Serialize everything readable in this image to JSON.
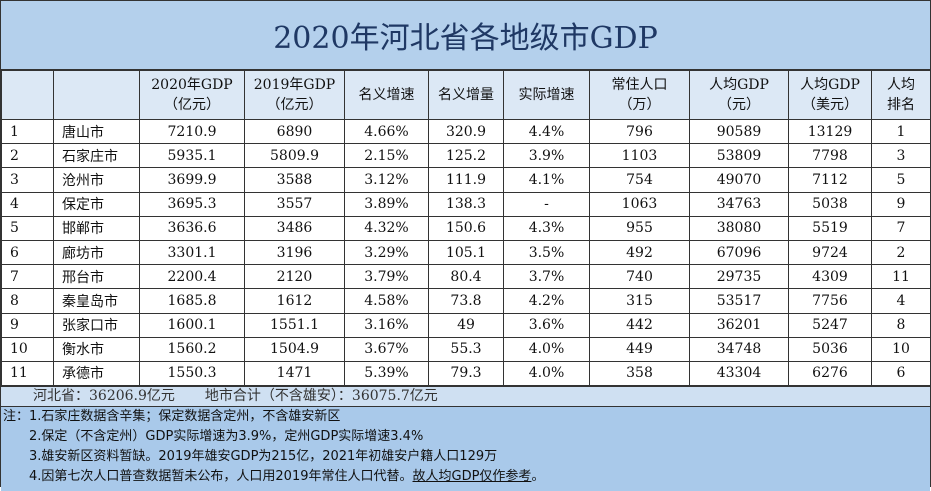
{
  "title": "2020年河北省各地级市GDP",
  "headers": [
    "",
    "",
    "2020年GDP\n（亿元）",
    "2019年GDP\n（亿元）",
    "名义增速",
    "名义增量",
    "实际增速",
    "常住人口\n（万）",
    "人均GDP\n（元）",
    "人均GDP\n（美元）",
    "人均\n排名"
  ],
  "rows": [
    [
      "1",
      "唐山市",
      "7210.9",
      "6890",
      "4.66%",
      "320.9",
      "4.4%",
      "796",
      "90589",
      "13129",
      "1"
    ],
    [
      "2",
      "石家庄市",
      "5935.1",
      "5809.9",
      "2.15%",
      "125.2",
      "3.9%",
      "1103",
      "53809",
      "7798",
      "3"
    ],
    [
      "3",
      "沧州市",
      "3699.9",
      "3588",
      "3.12%",
      "111.9",
      "4.1%",
      "754",
      "49070",
      "7112",
      "5"
    ],
    [
      "4",
      "保定市",
      "3695.3",
      "3557",
      "3.89%",
      "138.3",
      "-",
      "1063",
      "34763",
      "5038",
      "9"
    ],
    [
      "5",
      "邯郸市",
      "3636.6",
      "3486",
      "4.32%",
      "150.6",
      "4.3%",
      "955",
      "38080",
      "5519",
      "7"
    ],
    [
      "6",
      "廊坊市",
      "3301.1",
      "3196",
      "3.29%",
      "105.1",
      "3.5%",
      "492",
      "67096",
      "9724",
      "2"
    ],
    [
      "7",
      "邢台市",
      "2200.4",
      "2120",
      "3.79%",
      "80.4",
      "3.7%",
      "740",
      "29735",
      "4309",
      "11"
    ],
    [
      "8",
      "秦皇岛市",
      "1685.8",
      "1612",
      "4.58%",
      "73.8",
      "4.2%",
      "315",
      "53517",
      "7756",
      "4"
    ],
    [
      "9",
      "张家口市",
      "1600.1",
      "1551.1",
      "3.16%",
      "49",
      "3.6%",
      "442",
      "36201",
      "5247",
      "8"
    ],
    [
      "10",
      "衡水市",
      "1560.2",
      "1504.9",
      "3.67%",
      "55.3",
      "4.0%",
      "449",
      "34748",
      "5036",
      "10"
    ],
    [
      "11",
      "承德市",
      "1550.3",
      "1471",
      "5.39%",
      "79.3",
      "4.0%",
      "358",
      "43304",
      "6276",
      "6"
    ]
  ],
  "summary": {
    "province": "河北省：36206.9亿元",
    "cities": "地市合计（不含雄安）：36075.7亿元"
  },
  "notes": {
    "prefix": "注：",
    "n1": "1.石家庄数据含辛集；保定数据含定州，不含雄安新区",
    "n2": "2.保定（不含定州）GDP实际增速为3.9%，定州GDP实际增速3.4%",
    "n3": "3.雄安新区资料暂缺。2019年雄安GDP为215亿，2021年初雄安户籍人口129万",
    "n4a": "4.因第七次人口普查数据暂未公布，人口用2019年常住人口代替。",
    "n4b": "故人均GDP仅作参考",
    "n4c": "。"
  }
}
